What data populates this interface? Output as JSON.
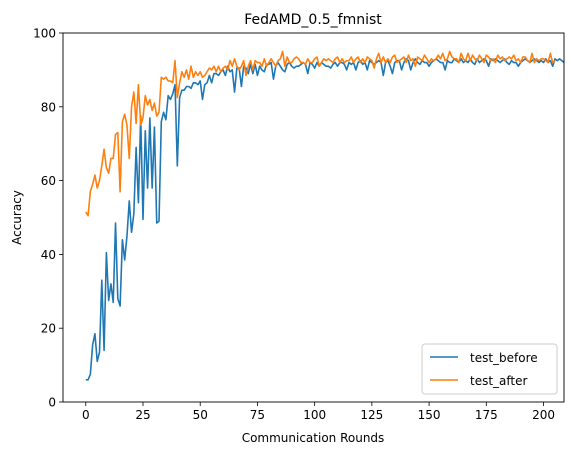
{
  "chart_data": {
    "type": "line",
    "title": "FedAMD_0.5_fmnist",
    "xlabel": "Communication Rounds",
    "ylabel": "Accuracy",
    "xlim": [
      -9.95,
      208.95
    ],
    "ylim": [
      0,
      100
    ],
    "xticks": [
      0,
      25,
      50,
      75,
      100,
      125,
      150,
      175,
      200
    ],
    "yticks": [
      0,
      20,
      40,
      60,
      80,
      100
    ],
    "grid": false,
    "legend_position": "lower-right",
    "colors": {
      "test_before": "#1f77b4",
      "test_after": "#ff7f0e"
    },
    "series": [
      {
        "name": "test_before",
        "color": "#1f77b4",
        "values": [
          6,
          6,
          7.5,
          15.5,
          18.5,
          11,
          13.5,
          33,
          14,
          40.5,
          27.5,
          32,
          27,
          48.5,
          28,
          26,
          44,
          38.5,
          45,
          54.5,
          46,
          51,
          69,
          54,
          77.5,
          49.5,
          73.5,
          58,
          77,
          58,
          74.5,
          48.5,
          49,
          76,
          78.5,
          76.5,
          83,
          82,
          83.5,
          86,
          64,
          82.5,
          84.5,
          84.5,
          85.5,
          85.5,
          85,
          86.5,
          86.5,
          86,
          87,
          82,
          86,
          86.5,
          88.5,
          86.5,
          89,
          89,
          88.5,
          89.5,
          90,
          88.5,
          91,
          89.5,
          90,
          84,
          90.5,
          90.5,
          85.5,
          91,
          90.5,
          89,
          91.5,
          89,
          91.5,
          88.5,
          91,
          90,
          89.5,
          91.5,
          91.5,
          92,
          87.5,
          91,
          92,
          91,
          90,
          89.5,
          91.5,
          92,
          91,
          90.5,
          91,
          91,
          91.5,
          92,
          91.5,
          89,
          92,
          91.5,
          90.5,
          92,
          91,
          92,
          91.5,
          91,
          91,
          90.5,
          91.5,
          92,
          91,
          92,
          92,
          91.5,
          90,
          92,
          91.5,
          92,
          90,
          92,
          92.5,
          91.5,
          92,
          90,
          92.5,
          92,
          91.5,
          92,
          92.5,
          92,
          88.5,
          92,
          92.5,
          91,
          89,
          92,
          92.5,
          92.5,
          90,
          92,
          93,
          92.5,
          90,
          92,
          93,
          92,
          91.5,
          92.5,
          92,
          92,
          91,
          92,
          92.5,
          93,
          92.5,
          92,
          92,
          90,
          92.5,
          92,
          92,
          93,
          92.5,
          92,
          93,
          92,
          92.5,
          92,
          93,
          92,
          91.5,
          93,
          92,
          92.5,
          93,
          92.5,
          91,
          93,
          92.5,
          93,
          92.5,
          92,
          92.5,
          93,
          92,
          91.5,
          92.5,
          92,
          92,
          91,
          92,
          92.5,
          93,
          92.5,
          92,
          92.5,
          93,
          92.5,
          92,
          92.5,
          92,
          93,
          92,
          92.5,
          91,
          93,
          92.5,
          93,
          92.5,
          92
        ],
        "x_start": 0,
        "x_step": 1
      },
      {
        "name": "test_after",
        "color": "#ff7f0e",
        "values": [
          51.5,
          50.5,
          57,
          59,
          61.5,
          58,
          60,
          64,
          68.5,
          63.5,
          62,
          66,
          66,
          72.5,
          73,
          57,
          76,
          78,
          75,
          66,
          80,
          84,
          75.5,
          86,
          75,
          77,
          83,
          80.5,
          82,
          79,
          81,
          77.5,
          78.5,
          88,
          87.5,
          88,
          87,
          87,
          86.5,
          92.5,
          82.5,
          86.5,
          89.5,
          88,
          90,
          87.5,
          91,
          88,
          89.5,
          88.5,
          89.5,
          88,
          88.5,
          89.5,
          90.5,
          90,
          91,
          89.5,
          91,
          89.5,
          90.5,
          91,
          90,
          92.5,
          91,
          93,
          91,
          90,
          91,
          92.5,
          88.5,
          91,
          92.5,
          90,
          92.5,
          92,
          92,
          91,
          93,
          91,
          92,
          93,
          92,
          91,
          92.5,
          93,
          95,
          91,
          93.5,
          92,
          92,
          93,
          93.5,
          93,
          92,
          92,
          91.5,
          93,
          92,
          92,
          93,
          93.5,
          91,
          92,
          93,
          92.5,
          93,
          92.5,
          92,
          93,
          93.5,
          92,
          93,
          92,
          92.5,
          92.5,
          93.5,
          92,
          93,
          93.5,
          92,
          93,
          92,
          93.5,
          93,
          92.5,
          90.5,
          93,
          94.5,
          92,
          93.5,
          92,
          93,
          92,
          93.5,
          94,
          92,
          92.5,
          93,
          93.5,
          92,
          94,
          92.5,
          93,
          91,
          93.5,
          93,
          92.5,
          94,
          93,
          92,
          93,
          92.5,
          93,
          94,
          93,
          94.5,
          92.5,
          93,
          95,
          93.5,
          93,
          93,
          92,
          94.5,
          93,
          92.5,
          94.5,
          92.5,
          94,
          93,
          92.5,
          94,
          93,
          92,
          94,
          93.5,
          92.5,
          93,
          92,
          94,
          93,
          93.5,
          92.5,
          93,
          93.5,
          93,
          94,
          92.5,
          93,
          92,
          93.5,
          93.5,
          92.5,
          92,
          94.5,
          92,
          93,
          92.5,
          93,
          93,
          92.5,
          92,
          94.5,
          92,
          92.5
        ],
        "x_start": 0,
        "x_step": 1
      }
    ]
  }
}
